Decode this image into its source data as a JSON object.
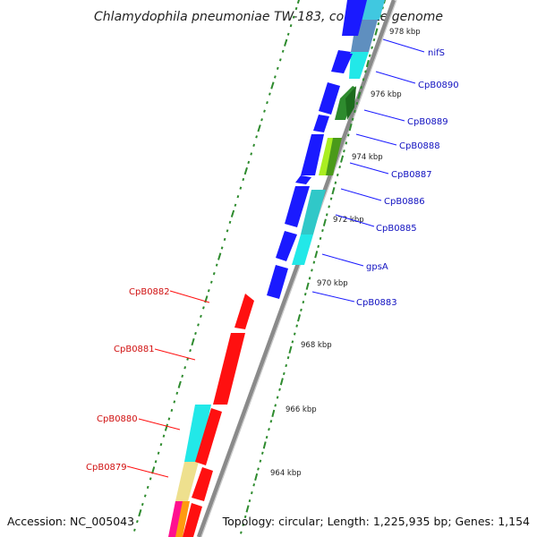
{
  "title": "Chlamydophila pneumoniae TW-183, complete genome",
  "footer": {
    "accession": "Accession: NC_005043",
    "topology": "Topology: circular; Length: 1,225,935 bp; Genes: 1,154"
  },
  "ruler_labels": [
    "978 kbp",
    "976 kbp",
    "974 kbp",
    "972 kbp",
    "970 kbp",
    "968 kbp",
    "966 kbp",
    "964 kbp"
  ],
  "forward_gene_labels": [
    "nifS",
    "CpB0890",
    "CpB0889",
    "CpB0888",
    "CpB0887",
    "CpB0886",
    "CpB0885",
    "gpsA",
    "CpB0883"
  ],
  "reverse_gene_labels": [
    "CpB0882",
    "CpB0881",
    "CpB0880",
    "CpB0879"
  ],
  "colors": {
    "forward_gene": "#1a1aff",
    "reverse_gene": "#ff1010",
    "backbone": "#8a8a8a",
    "ruler_dots": "#2e8b2e",
    "forward_label": "#1010c0",
    "reverse_label": "#d01010"
  }
}
